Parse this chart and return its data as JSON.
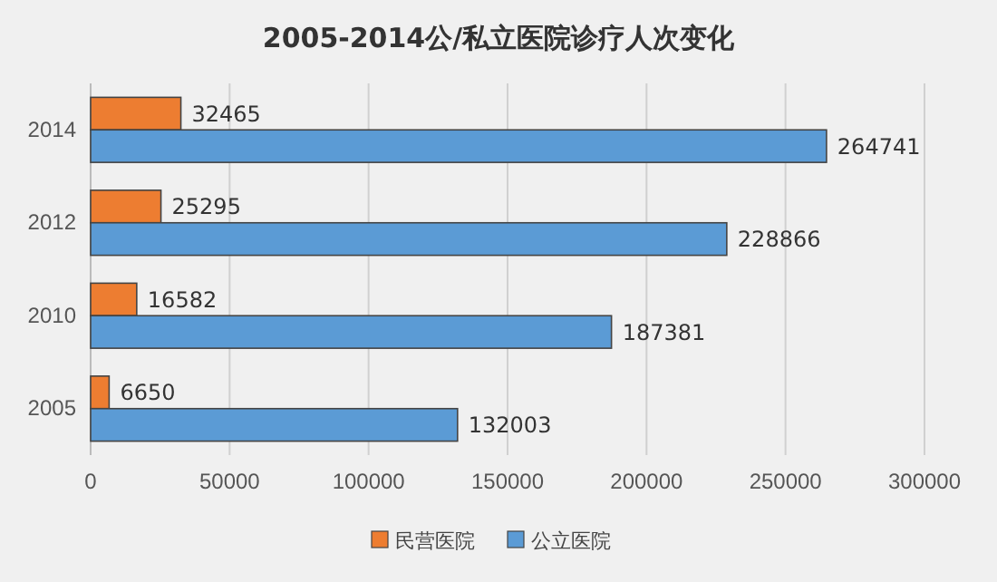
{
  "chart_data": {
    "type": "bar",
    "orientation": "horizontal",
    "title": "2005-2014公/私立医院诊疗人次变化",
    "categories": [
      "2014",
      "2012",
      "2010",
      "2005"
    ],
    "series": [
      {
        "name": "民营医院",
        "color": "#ed7d31",
        "values": [
          32465,
          25295,
          16582,
          6650
        ]
      },
      {
        "name": "公立医院",
        "color": "#5b9bd5",
        "values": [
          264741,
          228866,
          187381,
          132003
        ]
      }
    ],
    "xlim": [
      0,
      300000
    ],
    "xticks": [
      0,
      50000,
      100000,
      150000,
      200000,
      250000,
      300000
    ],
    "grid": "x",
    "legend": "bottom",
    "data_labels": true
  }
}
